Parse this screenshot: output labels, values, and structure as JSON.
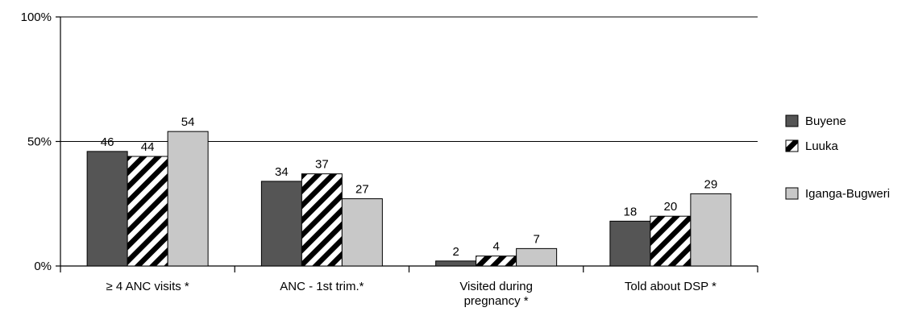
{
  "chart_data": {
    "type": "bar",
    "categories": [
      [
        "≥ 4 ANC visits *"
      ],
      [
        "ANC - 1st trim.*"
      ],
      [
        "Visited during",
        "pregnancy *"
      ],
      [
        "Told about DSP *"
      ]
    ],
    "series": [
      {
        "name": "Buyene",
        "values": [
          46,
          34,
          2,
          18
        ],
        "color": "#555555",
        "pattern": "solid"
      },
      {
        "name": "Luuka",
        "values": [
          44,
          37,
          4,
          20
        ],
        "color": "#000000",
        "pattern": "diagonal-stripes"
      },
      {
        "name": "Iganga-Bugweri",
        "values": [
          54,
          27,
          7,
          29
        ],
        "color": "#c8c8c8",
        "pattern": "solid"
      }
    ],
    "ylim": [
      0,
      100
    ],
    "yticks": [
      {
        "value": 0,
        "label": "0%"
      },
      {
        "value": 50,
        "label": "50%"
      },
      {
        "value": 100,
        "label": "100%"
      }
    ],
    "gridlines": [
      50,
      100
    ],
    "legend_position": "right",
    "title": "",
    "xlabel": "",
    "ylabel": ""
  }
}
